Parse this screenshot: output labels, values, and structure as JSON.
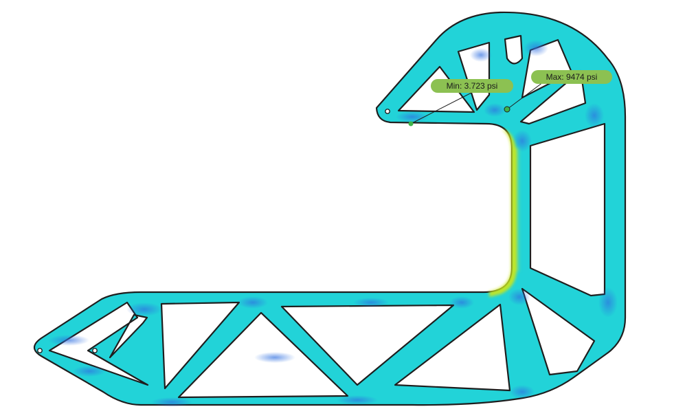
{
  "probes": {
    "min": {
      "label": "Min: 3.723 psi"
    },
    "max": {
      "label": "Max: 9474 psi"
    }
  },
  "colors": {
    "label_fill": "#8cc152",
    "stress_low": "#2f7fe0",
    "stress_mid": "#22d3d8",
    "stress_high": "#c8e61e",
    "outline": "#1e1e1e"
  }
}
